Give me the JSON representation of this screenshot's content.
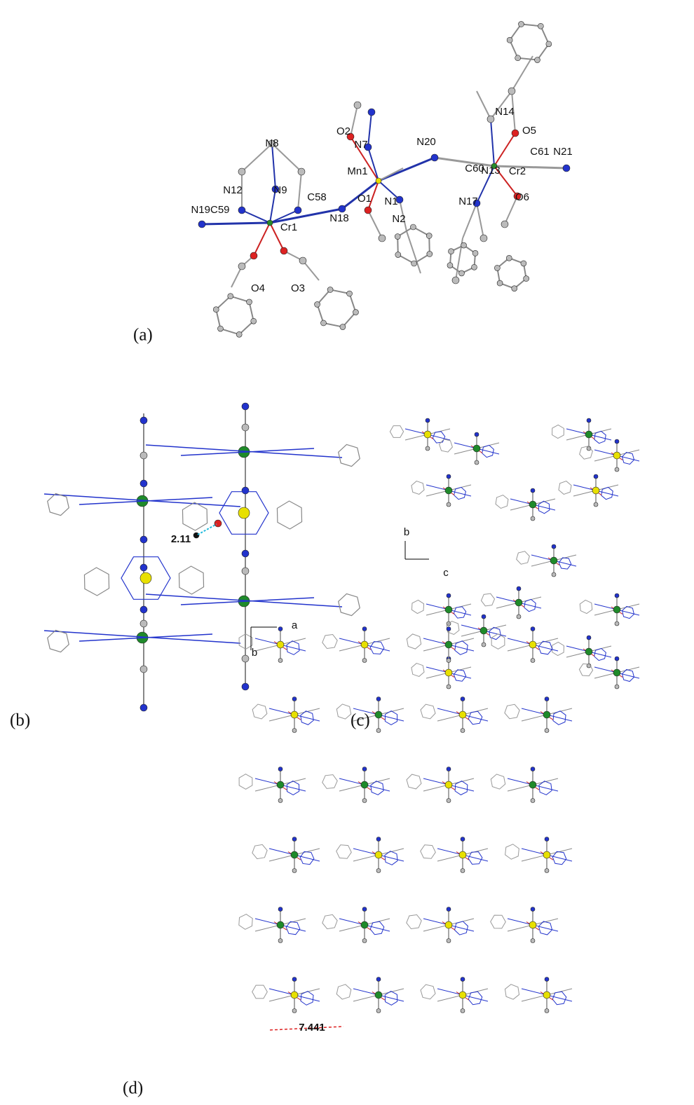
{
  "panels": [
    {
      "label": "(a)",
      "atom_labels": [
        "N8",
        "N12",
        "N9",
        "C58",
        "N19C59",
        "Cr1",
        "N18",
        "O4",
        "O3",
        "O2",
        "N7",
        "Mn1",
        "O1",
        "N1",
        "N2",
        "N20",
        "N14",
        "O5",
        "C61",
        "N21",
        "C60",
        "N13",
        "Cr2",
        "O6",
        "N17"
      ]
    },
    {
      "label": "(b)",
      "annotations": [
        "2.11"
      ]
    },
    {
      "label": "(c)",
      "axes": [
        "b",
        "c"
      ]
    },
    {
      "label": "(d)",
      "axes": [
        "a",
        "b"
      ],
      "annotations": [
        "7.441"
      ]
    }
  ]
}
